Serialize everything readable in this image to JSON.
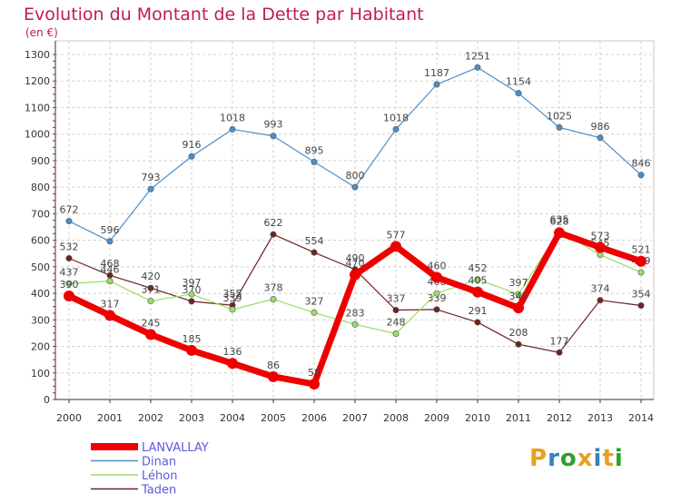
{
  "colors": {
    "title": "#c2185b",
    "grid": "#cfcfcf",
    "axis": "#333333",
    "plot_border": "#c9c9c9",
    "lanvallay": "#ee0000",
    "dinan": "#4b8ec8",
    "lehon": "#99dd66",
    "taden": "#6e2222"
  },
  "logo": {
    "letters": [
      "P",
      "r",
      "o",
      "x",
      "i",
      "t",
      "i"
    ],
    "colors": [
      "#e8a020",
      "#3a7fc0",
      "#2ca02c",
      "#e8a020",
      "#3a7fc0",
      "#e8a020",
      "#2ca02c"
    ]
  },
  "chart_data": {
    "type": "line",
    "title": "Evolution du Montant de la Dette par Habitant",
    "subtitle": "(en €)",
    "xlabel": "",
    "ylabel": "",
    "x": [
      2000,
      2001,
      2002,
      2003,
      2004,
      2005,
      2006,
      2007,
      2008,
      2009,
      2010,
      2011,
      2012,
      2013,
      2014
    ],
    "ylim": [
      0,
      1300
    ],
    "yticks": [
      0,
      100,
      200,
      300,
      400,
      500,
      600,
      700,
      800,
      900,
      1000,
      1100,
      1200,
      1300
    ],
    "grid": true,
    "legend_position": "bottom-left",
    "series": [
      {
        "name": "Taden",
        "color_key": "taden",
        "values": [
          532,
          468,
          420,
          370,
          355,
          622,
          554,
          490,
          337,
          339,
          291,
          208,
          177,
          374,
          354
        ]
      },
      {
        "name": "Léhon",
        "color_key": "lehon",
        "values": [
          437,
          446,
          371,
          397,
          339,
          378,
          327,
          283,
          248,
          400,
          452,
          397,
          635,
          545,
          479
        ]
      },
      {
        "name": "Dinan",
        "color_key": "dinan",
        "values": [
          672,
          596,
          793,
          916,
          1018,
          993,
          895,
          800,
          1018,
          1187,
          1251,
          1154,
          1025,
          986,
          846
        ]
      },
      {
        "name": "LANVALLAY",
        "color_key": "lanvallay",
        "values": [
          390,
          317,
          245,
          185,
          136,
          86,
          58,
          470,
          577,
          460,
          405,
          345,
          628,
          573,
          521
        ]
      }
    ],
    "data_labels": {
      "LANVALLAY": [
        "390",
        "317",
        "245",
        "185",
        "136",
        "86",
        "58",
        "470",
        "577",
        "460",
        "405",
        "345",
        "628",
        "573",
        "521"
      ],
      "Dinan": [
        "672",
        "596",
        "793",
        "916",
        "1018",
        "993",
        "895",
        "800",
        "1018",
        "1187",
        "1251",
        "1154",
        "1025",
        "986",
        "846"
      ],
      "Léhon": [
        "437",
        "446",
        "371",
        "397",
        "339",
        "378",
        "327",
        "283",
        "248",
        "400",
        "452",
        "397",
        "635",
        "545",
        "479"
      ],
      "Taden": [
        "532",
        "468",
        "420",
        "370",
        "355",
        "622",
        "554",
        "490",
        "337",
        "339",
        "291",
        "208",
        "177",
        "374",
        "354"
      ]
    },
    "legend": [
      {
        "label": "LANVALLAY",
        "color_key": "lanvallay"
      },
      {
        "label": "Dinan",
        "color_key": "dinan"
      },
      {
        "label": "Léhon",
        "color_key": "lehon"
      },
      {
        "label": "Taden",
        "color_key": "taden"
      }
    ]
  }
}
